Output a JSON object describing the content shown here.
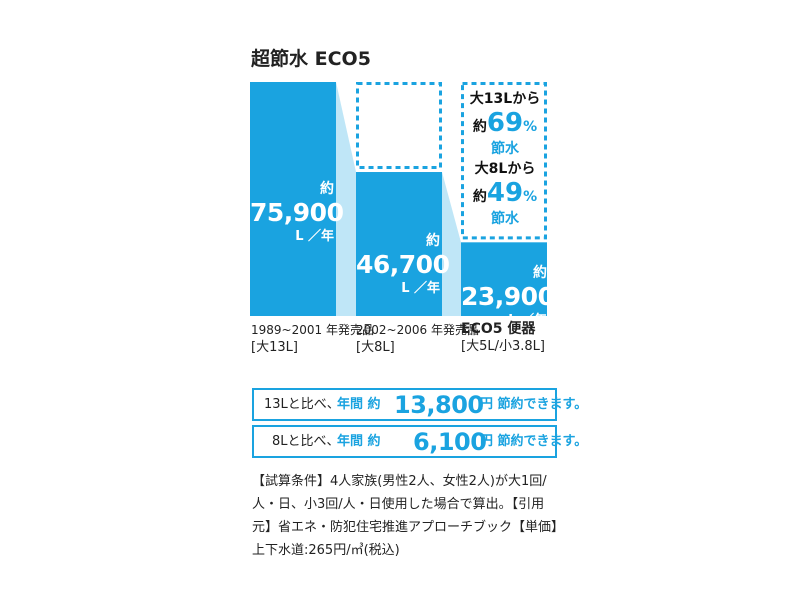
{
  "title": "超節水 ECO5",
  "chart_data": {
    "type": "bar",
    "title": "超節水 ECO5",
    "categories": [
      "1989~2001 年発売品 [大13L]",
      "2002~2006 年発売品 [大8L]",
      "ECO5 便器 [大5L/小3.8L]"
    ],
    "values": [
      75900,
      46700,
      23900
    ],
    "unit": "L/年",
    "ylim": [
      0,
      75900
    ],
    "value_labels": [
      {
        "prefix": "約",
        "value": "75,900",
        "unit": "L ／年"
      },
      {
        "prefix": "約",
        "value": "46,700",
        "unit": "L ／年"
      },
      {
        "prefix": "約",
        "value": "23,900",
        "unit": "L ／年"
      }
    ],
    "category_labels": [
      {
        "line1": "1989~2001 年発売品",
        "line2": "[大13L]"
      },
      {
        "line1": "2002~2006 年発売品",
        "line2": "[大8L]"
      },
      {
        "line1": "ECO5 便器",
        "line2": "[大5L/小3.8L]"
      }
    ],
    "savings": [
      {
        "from": "大13Lから",
        "prefix": "約",
        "percent": "69",
        "symbol": "%",
        "after": "節水"
      },
      {
        "from": "大8Lから",
        "prefix": "約",
        "percent": "49",
        "symbol": "%",
        "after": "節水"
      }
    ],
    "colors": {
      "bar": "#1aa3e0",
      "connector": "#bfe6f7",
      "dashed": "#1aa3e0"
    }
  },
  "summary": [
    {
      "lead": "13Lと比べ、",
      "label": "年間 約",
      "amount": "13,800",
      "tail": "円 節約できます。"
    },
    {
      "lead": "8Lと比べ、",
      "label": "年間 約",
      "amount": "6,100",
      "tail": "円 節約できます。"
    }
  ],
  "note": "【試算条件】4人家族(男性2人、女性2人)が大1回/人・日、小3回/人・日使用した場合で算出。【引用元】省エネ・防犯住宅推進アプローチブック【単価】上下水道:265円/㎥(税込)"
}
